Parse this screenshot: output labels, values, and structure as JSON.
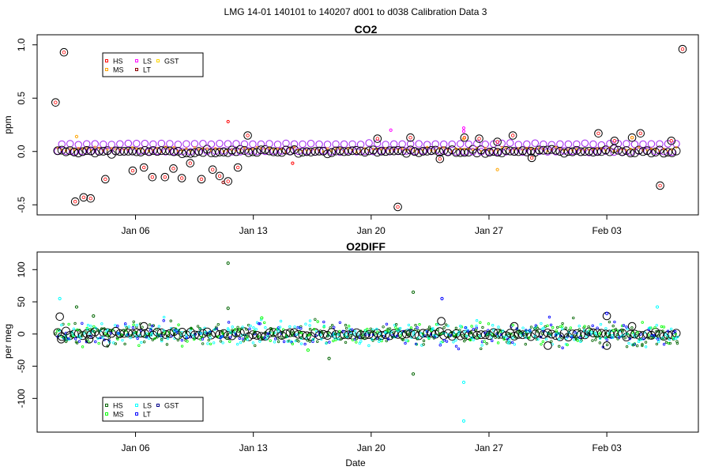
{
  "figure": {
    "title": "LMG   14-01    140101 to 140207    d001 to d038   Calibration Data 3",
    "xlabel": "Date"
  },
  "chart_data": [
    {
      "type": "scatter",
      "title": "CO2",
      "ylabel": "ppm",
      "xlabel": "",
      "x_type": "date",
      "xlim": [
        "2014-01-01",
        "2014-02-07"
      ],
      "ylim": [
        -0.55,
        1.05
      ],
      "y_ticks": [
        -0.5,
        0.0,
        0.5,
        1.0
      ],
      "y_tick_labels": [
        "-0.5",
        "0.0",
        "0.5",
        "1.0"
      ],
      "x_ticks": [
        "2014-01-06",
        "2014-01-13",
        "2014-01-20",
        "2014-01-27",
        "2014-02-03"
      ],
      "x_tick_labels": [
        "Jan 06",
        "Jan 13",
        "Jan 20",
        "Jan 27",
        "Feb 03"
      ],
      "legend": {
        "placement": "top-left",
        "entries": [
          {
            "label": "HS",
            "color": "#ff0000"
          },
          {
            "label": "MS",
            "color": "#ffa500"
          },
          {
            "label": "LS",
            "color": "#ff00ff"
          },
          {
            "label": "LT",
            "color": "#8b0000"
          },
          {
            "label": "GST",
            "color": "#ffd700"
          }
        ]
      },
      "large_circle_color": "#000000",
      "baseline_marker_color": "#a020f0",
      "series": [
        {
          "name": "HS",
          "color": "#ff0000",
          "x": [
            "2014-01-11 12:00",
            "2014-01-15 08:00"
          ],
          "y": [
            0.28,
            -0.11
          ]
        },
        {
          "name": "MS",
          "color": "#ffa500",
          "x": [
            "2014-01-02 12:00",
            "2014-01-25 12:00",
            "2014-01-27 12:00",
            "2014-02-04 12:00"
          ],
          "y": [
            0.14,
            0.12,
            -0.17,
            0.13
          ]
        },
        {
          "name": "LS",
          "color": "#ff00ff",
          "x": [
            "2014-01-21 04:00",
            "2014-01-25 12:00",
            "2014-01-25 12:00"
          ],
          "y": [
            0.2,
            0.22,
            0.19
          ]
        },
        {
          "name": "LT",
          "color": "#8b0000",
          "x": [
            "2014-01-11 05:00"
          ],
          "y": [
            -0.29
          ]
        }
      ],
      "outliers": {
        "x": [
          "2014-01-01 06:00",
          "2014-01-01 18:00",
          "2014-01-02 10:00",
          "2014-01-02 22:00",
          "2014-01-03 08:00",
          "2014-01-04 05:00",
          "2014-01-05 20:00",
          "2014-01-06 12:00",
          "2014-01-07 00:00",
          "2014-01-07 18:00",
          "2014-01-08 06:00",
          "2014-01-08 18:00",
          "2014-01-09 06:00",
          "2014-01-09 22:00",
          "2014-01-10 14:00",
          "2014-01-11 00:00",
          "2014-01-11 12:00",
          "2014-01-12 02:00",
          "2014-01-12 16:00",
          "2014-01-20 09:00",
          "2014-01-21 14:00",
          "2014-01-22 08:00",
          "2014-01-24 02:00",
          "2014-01-25 13:00",
          "2014-01-26 10:00",
          "2014-01-27 12:00",
          "2014-01-28 10:00",
          "2014-01-29 13:00",
          "2014-02-02 12:00",
          "2014-02-03 11:00",
          "2014-02-04 12:00",
          "2014-02-05 00:00",
          "2014-02-06 04:00",
          "2014-02-06 20:00",
          "2014-02-07 12:00"
        ],
        "y": [
          0.46,
          0.93,
          -0.47,
          -0.43,
          -0.44,
          -0.26,
          -0.18,
          -0.15,
          -0.24,
          -0.24,
          -0.16,
          -0.25,
          -0.11,
          -0.26,
          -0.17,
          -0.23,
          -0.28,
          -0.15,
          0.15,
          0.12,
          -0.52,
          0.13,
          -0.07,
          0.13,
          0.12,
          0.09,
          0.15,
          -0.06,
          0.17,
          0.1,
          0.13,
          0.17,
          -0.32,
          0.1,
          0.96
        ]
      }
    },
    {
      "type": "scatter",
      "title": "O2DIFF",
      "ylabel": "per meg",
      "xlabel": "Date",
      "x_type": "date",
      "xlim": [
        "2014-01-01",
        "2014-02-07"
      ],
      "ylim": [
        -145,
        120
      ],
      "y_ticks": [
        -100,
        -50,
        0,
        50,
        100
      ],
      "y_tick_labels": [
        "-100",
        "-50",
        "0",
        "50",
        "100"
      ],
      "x_ticks": [
        "2014-01-06",
        "2014-01-13",
        "2014-01-20",
        "2014-01-27",
        "2014-02-03"
      ],
      "x_tick_labels": [
        "Jan 06",
        "Jan 13",
        "Jan 20",
        "Jan 27",
        "Feb 03"
      ],
      "legend": {
        "placement": "bottom-left",
        "entries": [
          {
            "label": "HS",
            "color": "#006400"
          },
          {
            "label": "MS",
            "color": "#00ff00"
          },
          {
            "label": "LS",
            "color": "#00ffff"
          },
          {
            "label": "LT",
            "color": "#0000ff"
          },
          {
            "label": "GST",
            "color": "#00008b"
          }
        ]
      },
      "large_circle_color": "#000000",
      "series": [
        {
          "name": "HS",
          "color": "#006400",
          "x": [
            "2014-01-11 12:00",
            "2014-01-11 12:00",
            "2014-01-17 12:00",
            "2014-01-22 12:00",
            "2014-01-22 12:00",
            "2014-01-02 12:00",
            "2014-01-03 12:00"
          ],
          "y": [
            110,
            40,
            -38,
            65,
            -62,
            42,
            28
          ]
        },
        {
          "name": "MS",
          "color": "#00ff00",
          "x": [
            "2014-01-13 12:00",
            "2014-01-16 06:00"
          ],
          "y": [
            25,
            -25
          ]
        },
        {
          "name": "LS",
          "color": "#00ffff",
          "x": [
            "2014-01-01 12:00",
            "2014-01-25 12:00",
            "2014-01-25 12:00",
            "2014-02-06 00:00"
          ],
          "y": [
            55,
            -75,
            -135,
            42
          ]
        },
        {
          "name": "LT",
          "color": "#0000ff",
          "x": [
            "2014-01-24 05:00",
            "2014-02-03 00:00"
          ],
          "y": [
            55,
            32
          ]
        }
      ],
      "outliers": {
        "x": [
          "2014-01-01 12:00",
          "2014-01-01 14:00",
          "2014-01-03 06:00",
          "2014-01-04 06:00",
          "2014-01-06 12:00",
          "2014-01-24 04:00",
          "2014-02-03 00:00",
          "2014-02-03 00:00",
          "2014-02-04 12:00",
          "2014-01-28 12:00",
          "2014-01-30 12:00"
        ],
        "y": [
          27,
          -8,
          -8,
          -14,
          12,
          20,
          28,
          -18,
          12,
          12,
          -18
        ]
      }
    }
  ]
}
